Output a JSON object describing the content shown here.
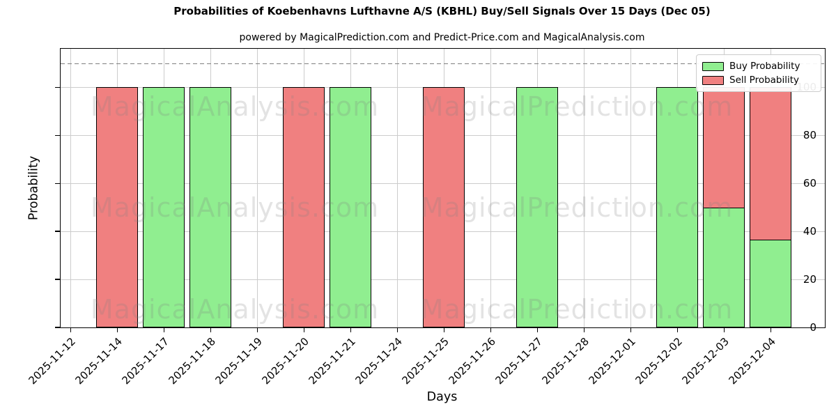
{
  "header": {
    "title": "Probabilities of Koebenhavns Lufthavne A/S (KBHL) Buy/Sell Signals Over 15 Days (Dec 05)",
    "subtitle": "powered by MagicalPrediction.com and Predict-Price.com and MagicalAnalysis.com"
  },
  "chart_data": {
    "type": "bar",
    "stacked": true,
    "title": "Probabilities of Koebenhavns Lufthavne A/S (KBHL) Buy/Sell Signals Over 15 Days (Dec 05)",
    "subtitle": "powered by MagicalPrediction.com and Predict-Price.com and MagicalAnalysis.com",
    "xlabel": "Days",
    "ylabel": "Probability",
    "ylim": [
      0,
      116
    ],
    "yticks": [
      0,
      20,
      40,
      60,
      80,
      100
    ],
    "dashed_threshold_y": 110,
    "grid": true,
    "legend_position": "upper right",
    "categories": [
      "2025-11-12",
      "2025-11-14",
      "2025-11-17",
      "2025-11-18",
      "2025-11-19",
      "2025-11-20",
      "2025-11-21",
      "2025-11-24",
      "2025-11-25",
      "2025-11-26",
      "2025-11-27",
      "2025-11-28",
      "2025-12-01",
      "2025-12-02",
      "2025-12-03",
      "2025-12-04"
    ],
    "series": [
      {
        "name": "Buy Probability",
        "color": "#90EE90",
        "values": [
          0,
          0,
          100,
          100,
          0,
          0,
          100,
          0,
          0,
          0,
          100,
          0,
          0,
          100,
          50,
          36.5
        ]
      },
      {
        "name": "Sell Probability",
        "color": "#F08080",
        "values": [
          0,
          100,
          0,
          0,
          0,
          100,
          0,
          0,
          100,
          0,
          0,
          0,
          0,
          0,
          50,
          63.5
        ]
      }
    ],
    "watermarks": [
      "MagicalAnalysis.com",
      "MagicalPrediction.com"
    ]
  },
  "legend": {
    "entries": [
      {
        "label": "Buy Probability",
        "color": "#90EE90"
      },
      {
        "label": "Sell Probability",
        "color": "#F08080"
      }
    ]
  },
  "colors": {
    "buy": "#90EE90",
    "sell": "#F08080",
    "bar_edge": "#000000",
    "grid": "#cccccc",
    "dashed_line": "#7f7f7f",
    "watermark": "rgba(128,128,128,0.22)",
    "background": "#ffffff"
  }
}
